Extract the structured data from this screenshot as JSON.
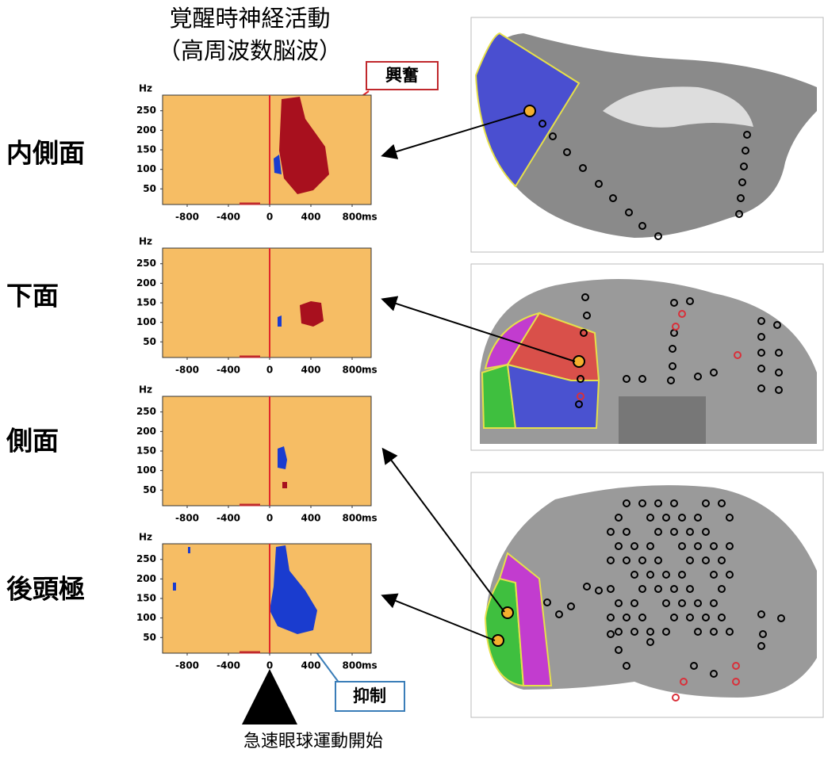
{
  "title": [
    "覚醒時神経活動",
    "（高周波数脳波）"
  ],
  "annotations": {
    "excitation": "興奮",
    "suppression": "抑制",
    "onset": "急速眼球運動開始"
  },
  "axes": {
    "y_unit": "Hz",
    "x_unit": "ms",
    "yticks": [
      250,
      200,
      150,
      100,
      50
    ],
    "xticks": [
      -800,
      -400,
      0,
      400,
      800
    ]
  },
  "panels": [
    {
      "label": "内側面"
    },
    {
      "label": "下面"
    },
    {
      "label": "側面"
    },
    {
      "label": "後頭極"
    }
  ]
}
